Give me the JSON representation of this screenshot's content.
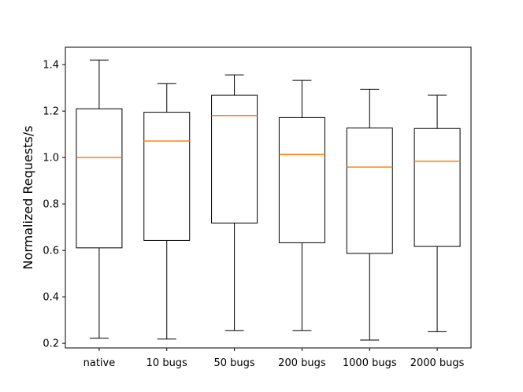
{
  "chart_data": {
    "type": "box",
    "title": "",
    "xlabel": "",
    "ylabel": "Normalized Requests/s",
    "ylim": [
      0.18,
      1.475
    ],
    "yticks": [
      0.2,
      0.4,
      0.6,
      0.8,
      1.0,
      1.2,
      1.4
    ],
    "ytick_labels": [
      "0.2",
      "0.4",
      "0.6",
      "0.8",
      "1.0",
      "1.2",
      "1.4"
    ],
    "categories": [
      "native",
      "10 bugs",
      "50 bugs",
      "200 bugs",
      "1000 bugs",
      "2000 bugs"
    ],
    "boxes": [
      {
        "whisker_low": 0.222,
        "q1": 0.611,
        "median": 1.0,
        "q3": 1.21,
        "whisker_high": 1.42
      },
      {
        "whisker_low": 0.218,
        "q1": 0.643,
        "median": 1.071,
        "q3": 1.195,
        "whisker_high": 1.318
      },
      {
        "whisker_low": 0.255,
        "q1": 0.718,
        "median": 1.181,
        "q3": 1.268,
        "whisker_high": 1.356
      },
      {
        "whisker_low": 0.255,
        "q1": 0.633,
        "median": 1.013,
        "q3": 1.172,
        "whisker_high": 1.332
      },
      {
        "whisker_low": 0.214,
        "q1": 0.587,
        "median": 0.959,
        "q3": 1.127,
        "whisker_high": 1.294
      },
      {
        "whisker_low": 0.25,
        "q1": 0.617,
        "median": 0.984,
        "q3": 1.125,
        "whisker_high": 1.268
      }
    ],
    "grid": false,
    "colors": {
      "box": "#000000",
      "median": "#ff7f0e",
      "background": "#ffffff"
    }
  }
}
